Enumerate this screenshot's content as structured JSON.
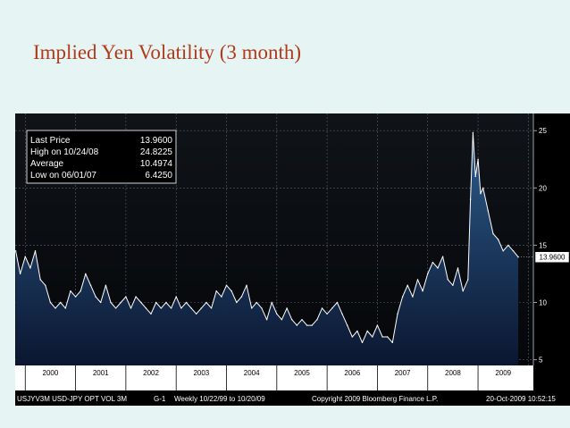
{
  "slide": {
    "title": "Implied Yen Volatility (3 month)"
  },
  "legend": {
    "rows": [
      {
        "label": "Last Price",
        "value": "13.9600"
      },
      {
        "label": "High on  10/24/08",
        "value": "24.8225"
      },
      {
        "label": "Average",
        "value": "10.4974"
      },
      {
        "label": "Low on  06/01/07",
        "value": "6.4250"
      }
    ]
  },
  "footer": {
    "ticker": "USJYV3M USD-JPY OPT VOL 3M",
    "chart_id": "G-1",
    "period": "Weekly  10/22/99 to 10/20/09",
    "copyright": "Copyright 2009 Bloomberg Finance L.P.",
    "timestamp": "20-Oct-2009 10:52:15"
  },
  "colors": {
    "title": "#b13a18",
    "slide_background": "#e6f4f4",
    "chart_background": "#0b0d12",
    "line": "#ffffff",
    "area_top": "#2c5c8c",
    "area_bottom": "#0b1630",
    "last_price_box": "#ffffff"
  },
  "chart_data": {
    "type": "area",
    "title": "Implied Yen Volatility (3 month)",
    "series_name": "USJYV3M USD-JPY OPT VOL 3M",
    "frequency": "Weekly",
    "x_start": 1999.81,
    "x_end": 2009.8,
    "xlim": [
      1999.8,
      2010.1
    ],
    "ylim": [
      4.5,
      26.5
    ],
    "yticks": [
      5,
      10,
      15,
      20,
      25
    ],
    "categories": [
      "2000",
      "2001",
      "2002",
      "2003",
      "2004",
      "2005",
      "2006",
      "2007",
      "2008",
      "2009"
    ],
    "last_value_label": "13.9600",
    "last_value": 13.96,
    "x": [
      1999.81,
      1999.9,
      2000.0,
      2000.1,
      2000.2,
      2000.3,
      2000.4,
      2000.5,
      2000.6,
      2000.7,
      2000.8,
      2000.9,
      2001.0,
      2001.1,
      2001.2,
      2001.3,
      2001.4,
      2001.5,
      2001.6,
      2001.7,
      2001.8,
      2001.9,
      2002.0,
      2002.1,
      2002.2,
      2002.3,
      2002.4,
      2002.5,
      2002.6,
      2002.7,
      2002.8,
      2002.9,
      2003.0,
      2003.1,
      2003.2,
      2003.3,
      2003.4,
      2003.5,
      2003.6,
      2003.7,
      2003.8,
      2003.9,
      2004.0,
      2004.1,
      2004.2,
      2004.3,
      2004.4,
      2004.5,
      2004.6,
      2004.7,
      2004.8,
      2004.9,
      2005.0,
      2005.1,
      2005.2,
      2005.3,
      2005.4,
      2005.5,
      2005.6,
      2005.7,
      2005.8,
      2005.9,
      2006.0,
      2006.1,
      2006.2,
      2006.3,
      2006.4,
      2006.5,
      2006.6,
      2006.7,
      2006.8,
      2006.9,
      2007.0,
      2007.1,
      2007.2,
      2007.3,
      2007.4,
      2007.5,
      2007.6,
      2007.7,
      2007.8,
      2007.9,
      2008.0,
      2008.1,
      2008.2,
      2008.3,
      2008.4,
      2008.5,
      2008.6,
      2008.7,
      2008.8,
      2008.85,
      2008.9,
      2008.95,
      2009.0,
      2009.05,
      2009.1,
      2009.2,
      2009.3,
      2009.4,
      2009.5,
      2009.6,
      2009.7,
      2009.8
    ],
    "values": [
      14.5,
      12.5,
      14.0,
      13.0,
      14.5,
      12.0,
      11.5,
      10.0,
      9.5,
      10.0,
      9.5,
      11.0,
      10.5,
      11.0,
      12.5,
      11.5,
      10.5,
      10.0,
      11.5,
      10.0,
      9.5,
      10.0,
      10.5,
      9.5,
      10.5,
      10.0,
      9.5,
      9.0,
      10.0,
      9.5,
      10.0,
      9.5,
      10.5,
      9.5,
      10.0,
      9.5,
      9.0,
      9.5,
      10.0,
      9.5,
      11.0,
      10.5,
      11.5,
      11.0,
      10.0,
      10.5,
      11.5,
      9.5,
      10.0,
      9.5,
      8.5,
      10.0,
      9.0,
      8.5,
      9.5,
      8.5,
      8.0,
      8.5,
      8.0,
      8.0,
      8.5,
      9.5,
      9.0,
      9.5,
      10.0,
      9.0,
      8.0,
      7.0,
      7.5,
      6.5,
      7.5,
      7.0,
      8.0,
      7.0,
      7.0,
      6.5,
      9.0,
      10.5,
      11.5,
      10.5,
      12.0,
      11.0,
      12.5,
      13.5,
      13.0,
      14.0,
      12.0,
      11.5,
      13.0,
      11.0,
      12.0,
      19.0,
      24.82,
      21.0,
      22.5,
      19.5,
      20.0,
      18.0,
      16.0,
      15.5,
      14.5,
      15.0,
      14.5,
      13.96
    ]
  }
}
